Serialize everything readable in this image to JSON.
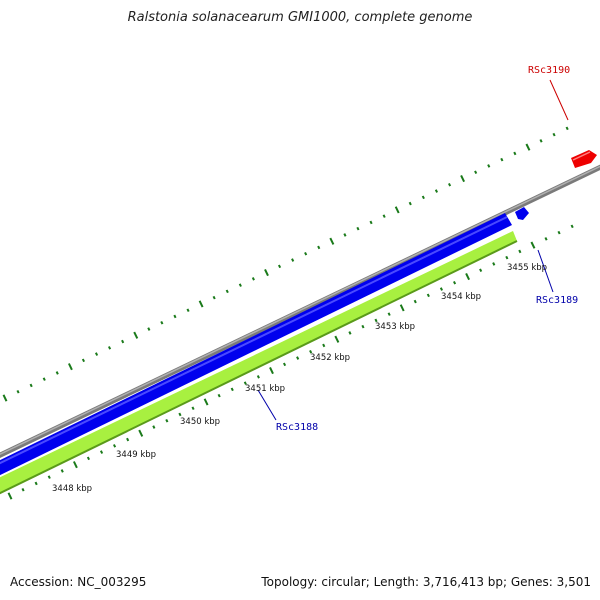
{
  "title": "Ralstonia solanacearum GMI1000, complete genome",
  "footer": {
    "accession": "Accession: NC_003295",
    "summary": "Topology: circular; Length: 3,716,413 bp; Genes: 3,501"
  },
  "colors": {
    "backbone": "#808080",
    "forward_strand": "#0000ee",
    "reverse_strand": "#a8f040",
    "tick": "#1a7a1a",
    "label_forward": "#cc0000",
    "label_reverse": "#0000aa"
  },
  "scale_labels": [
    "3448 kbp",
    "3449 kbp",
    "3450 kbp",
    "3451 kbp",
    "3452 kbp",
    "3453 kbp",
    "3454 kbp",
    "3455 kbp"
  ],
  "genes": [
    {
      "name": "RSc3190",
      "strand": "forward",
      "color": "#ee0000"
    },
    {
      "name": "RSc3189",
      "strand": "reverse",
      "color": "#0000ee"
    },
    {
      "name": "RSc3188",
      "strand": "reverse",
      "color": "#0000ee"
    }
  ]
}
